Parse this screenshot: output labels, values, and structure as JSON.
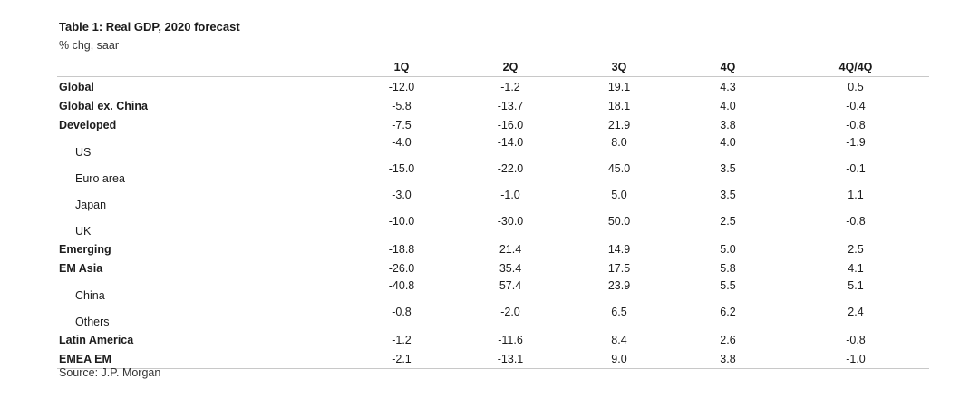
{
  "title": "Table 1: Real GDP, 2020 forecast",
  "subtitle": "% chg, saar",
  "columns": [
    "",
    "1Q",
    "2Q",
    "3Q",
    "4Q",
    "4Q/4Q"
  ],
  "rows": [
    {
      "label": "Global",
      "bold": true,
      "values": [
        "-12.0",
        "-1.2",
        "19.1",
        "4.3",
        "0.5"
      ]
    },
    {
      "label": "Global ex. China",
      "bold": true,
      "values": [
        "-5.8",
        "-13.7",
        "18.1",
        "4.0",
        "-0.4"
      ]
    },
    {
      "label": "Developed",
      "bold": true,
      "values": [
        "-7.5",
        "-16.0",
        "21.9",
        "3.8",
        "-0.8"
      ]
    },
    {
      "label": "US",
      "bold": false,
      "values": [
        "-4.0",
        "-14.0",
        "8.0",
        "4.0",
        "-1.9"
      ]
    },
    {
      "label": "Euro area",
      "bold": false,
      "values": [
        "-15.0",
        "-22.0",
        "45.0",
        "3.5",
        "-0.1"
      ]
    },
    {
      "label": "Japan",
      "bold": false,
      "values": [
        "-3.0",
        "-1.0",
        "5.0",
        "3.5",
        "1.1"
      ]
    },
    {
      "label": "UK",
      "bold": false,
      "values": [
        "-10.0",
        "-30.0",
        "50.0",
        "2.5",
        "-0.8"
      ]
    },
    {
      "label": "Emerging",
      "bold": true,
      "values": [
        "-18.8",
        "21.4",
        "14.9",
        "5.0",
        "2.5"
      ]
    },
    {
      "label": "EM Asia",
      "bold": true,
      "values": [
        "-26.0",
        "35.4",
        "17.5",
        "5.8",
        "4.1"
      ]
    },
    {
      "label": "China",
      "bold": false,
      "values": [
        "-40.8",
        "57.4",
        "23.9",
        "5.5",
        "5.1"
      ]
    },
    {
      "label": "Others",
      "bold": false,
      "values": [
        "-0.8",
        "-2.0",
        "6.5",
        "6.2",
        "2.4"
      ]
    },
    {
      "label": "Latin America",
      "bold": true,
      "values": [
        "-1.2",
        "-11.6",
        "8.4",
        "2.6",
        "-0.8"
      ]
    },
    {
      "label": "EMEA EM",
      "bold": true,
      "values": [
        "-2.1",
        "-13.1",
        "9.0",
        "3.8",
        "-1.0"
      ]
    }
  ],
  "source": "Source: J.P. Morgan"
}
